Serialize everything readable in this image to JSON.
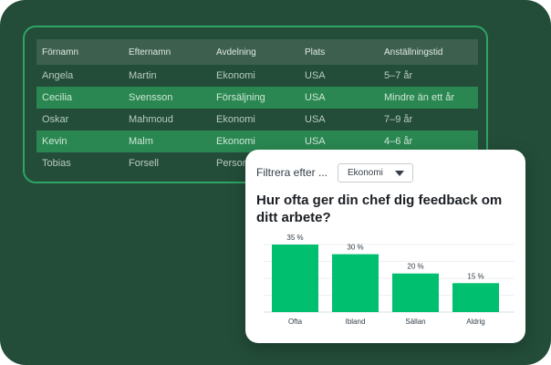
{
  "table": {
    "headers": [
      "Förnamn",
      "Efternamn",
      "Avdelning",
      "Plats",
      "Anställningstid"
    ],
    "rows": [
      [
        "Angela",
        "Martin",
        "Ekonomi",
        "USA",
        "5–7 år"
      ],
      [
        "Cecilia",
        "Svensson",
        "Försäljning",
        "USA",
        "Mindre än ett år"
      ],
      [
        "Oskar",
        "Mahmoud",
        "Ekonomi",
        "USA",
        "7–9 år"
      ],
      [
        "Kevin",
        "Malm",
        "Ekonomi",
        "USA",
        "4–6 år"
      ],
      [
        "Tobias",
        "Forsell",
        "Person",
        "",
        ""
      ]
    ]
  },
  "feedback_card": {
    "filter_label": "Filtrera efter ...",
    "filter_value": "Ekonomi",
    "question": "Hur ofta ger din chef dig feedback om ditt arbete?"
  },
  "colors": {
    "background": "#234d39",
    "accent_green": "#00bf6f",
    "row_highlight": "#2a8751"
  },
  "chart_data": {
    "type": "bar",
    "categories": [
      "Ofta",
      "Ibland",
      "Sällan",
      "Aldrig"
    ],
    "values": [
      35,
      30,
      20,
      15
    ],
    "value_labels": [
      "35 %",
      "30 %",
      "20 %",
      "15 %"
    ],
    "ylim": [
      0,
      35
    ],
    "grid": true,
    "title": "",
    "xlabel": "",
    "ylabel": ""
  }
}
